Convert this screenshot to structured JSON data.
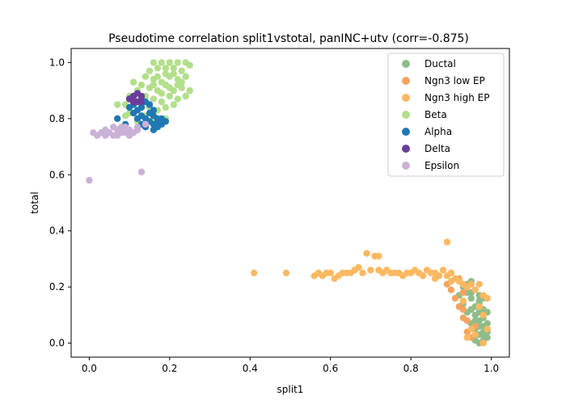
{
  "chart_data": {
    "type": "scatter",
    "title": "Pseudotime correlation split1vstotal, panINC+utv (corr=-0.875)",
    "xlabel": "split1",
    "ylabel": "total",
    "xlim": [
      -0.045,
      1.045
    ],
    "ylim": [
      -0.05,
      1.05
    ],
    "xticks": [
      "0.0",
      "0.2",
      "0.4",
      "0.6",
      "0.8",
      "1.0"
    ],
    "yticks": [
      "0.0",
      "0.2",
      "0.4",
      "0.6",
      "0.8",
      "1.0"
    ],
    "grid": false,
    "legend_position": "top-right",
    "series": [
      {
        "name": "Ductal",
        "color": "#8fbc8b",
        "points": [
          [
            0.93,
            0.2
          ],
          [
            0.94,
            0.18
          ],
          [
            0.95,
            0.16
          ],
          [
            0.96,
            0.19
          ],
          [
            0.97,
            0.14
          ],
          [
            0.95,
            0.12
          ],
          [
            0.96,
            0.1
          ],
          [
            0.97,
            0.08
          ],
          [
            0.98,
            0.06
          ],
          [
            0.98,
            0.04
          ],
          [
            0.99,
            0.02
          ],
          [
            0.97,
            0.03
          ],
          [
            0.96,
            0.05
          ],
          [
            0.99,
            0.07
          ],
          [
            0.98,
            0.12
          ],
          [
            0.94,
            0.21
          ],
          [
            0.92,
            0.17
          ],
          [
            0.95,
            0.22
          ],
          [
            0.97,
            0.17
          ],
          [
            0.98,
            0.09
          ],
          [
            0.96,
            0.01
          ],
          [
            0.99,
            0.11
          ],
          [
            0.97,
            0.15
          ],
          [
            0.93,
            0.14
          ],
          [
            0.95,
            0.07
          ],
          [
            0.98,
            0.01
          ],
          [
            0.96,
            0.13
          ],
          [
            0.94,
            0.11
          ],
          [
            0.97,
            0.11
          ],
          [
            0.98,
            0.16
          ],
          [
            0.95,
            0.18
          ],
          [
            0.99,
            0.04
          ],
          [
            0.97,
            0.06
          ],
          [
            0.96,
            0.08
          ],
          [
            0.98,
            0.03
          ],
          [
            0.97,
            0.0
          ]
        ]
      },
      {
        "name": "Ngn3 low EP",
        "color": "#f4a460",
        "points": [
          [
            0.9,
            0.19
          ],
          [
            0.92,
            0.23
          ],
          [
            0.91,
            0.16
          ],
          [
            0.93,
            0.09
          ],
          [
            0.94,
            0.04
          ],
          [
            0.95,
            0.02
          ],
          [
            0.92,
            0.13
          ],
          [
            0.93,
            0.18
          ],
          [
            0.96,
            0.06
          ],
          [
            0.89,
            0.21
          ],
          [
            0.94,
            0.08
          ],
          [
            0.93,
            0.12
          ]
        ]
      },
      {
        "name": "Ngn3 high EP",
        "color": "#fdb863",
        "points": [
          [
            0.41,
            0.25
          ],
          [
            0.49,
            0.25
          ],
          [
            0.56,
            0.24
          ],
          [
            0.57,
            0.25
          ],
          [
            0.59,
            0.25
          ],
          [
            0.6,
            0.25
          ],
          [
            0.61,
            0.23
          ],
          [
            0.62,
            0.24
          ],
          [
            0.64,
            0.25
          ],
          [
            0.65,
            0.25
          ],
          [
            0.66,
            0.26
          ],
          [
            0.67,
            0.27
          ],
          [
            0.68,
            0.25
          ],
          [
            0.69,
            0.32
          ],
          [
            0.7,
            0.26
          ],
          [
            0.71,
            0.31
          ],
          [
            0.72,
            0.31
          ],
          [
            0.72,
            0.26
          ],
          [
            0.74,
            0.26
          ],
          [
            0.75,
            0.25
          ],
          [
            0.76,
            0.25
          ],
          [
            0.77,
            0.25
          ],
          [
            0.78,
            0.24
          ],
          [
            0.79,
            0.25
          ],
          [
            0.8,
            0.25
          ],
          [
            0.81,
            0.26
          ],
          [
            0.82,
            0.25
          ],
          [
            0.83,
            0.24
          ],
          [
            0.84,
            0.26
          ],
          [
            0.85,
            0.25
          ],
          [
            0.86,
            0.25
          ],
          [
            0.87,
            0.24
          ],
          [
            0.88,
            0.26
          ],
          [
            0.89,
            0.36
          ],
          [
            0.89,
            0.24
          ],
          [
            0.9,
            0.25
          ],
          [
            0.91,
            0.23
          ],
          [
            0.92,
            0.22
          ],
          [
            0.93,
            0.21
          ],
          [
            0.94,
            0.2
          ],
          [
            0.95,
            0.21
          ],
          [
            0.96,
            0.19
          ],
          [
            0.97,
            0.21
          ],
          [
            0.98,
            0.17
          ],
          [
            0.99,
            0.16
          ],
          [
            0.97,
            0.13
          ],
          [
            0.98,
            0.1
          ],
          [
            0.99,
            0.05
          ],
          [
            0.96,
            0.03
          ],
          [
            0.95,
            0.05
          ],
          [
            0.94,
            0.02
          ],
          [
            0.98,
            0.0
          ],
          [
            0.63,
            0.25
          ],
          [
            0.58,
            0.24
          ],
          [
            0.73,
            0.25
          ],
          [
            0.86,
            0.23
          ],
          [
            0.9,
            0.22
          ],
          [
            0.93,
            0.15
          ]
        ]
      },
      {
        "name": "Beta",
        "color": "#b2df8a",
        "points": [
          [
            0.15,
            0.97
          ],
          [
            0.16,
            1.0
          ],
          [
            0.18,
            1.0
          ],
          [
            0.2,
            1.0
          ],
          [
            0.22,
            1.0
          ],
          [
            0.24,
            1.0
          ],
          [
            0.17,
            0.98
          ],
          [
            0.19,
            0.96
          ],
          [
            0.21,
            0.98
          ],
          [
            0.23,
            0.97
          ],
          [
            0.25,
            0.99
          ],
          [
            0.16,
            0.94
          ],
          [
            0.18,
            0.93
          ],
          [
            0.2,
            0.95
          ],
          [
            0.22,
            0.94
          ],
          [
            0.24,
            0.95
          ],
          [
            0.15,
            0.91
          ],
          [
            0.17,
            0.9
          ],
          [
            0.19,
            0.92
          ],
          [
            0.21,
            0.9
          ],
          [
            0.23,
            0.91
          ],
          [
            0.25,
            0.9
          ],
          [
            0.13,
            0.92
          ],
          [
            0.14,
            0.88
          ],
          [
            0.16,
            0.87
          ],
          [
            0.18,
            0.86
          ],
          [
            0.2,
            0.88
          ],
          [
            0.22,
            0.87
          ],
          [
            0.12,
            0.9
          ],
          [
            0.11,
            0.93
          ],
          [
            0.13,
            0.85
          ],
          [
            0.15,
            0.84
          ],
          [
            0.17,
            0.83
          ],
          [
            0.19,
            0.84
          ],
          [
            0.21,
            0.85
          ],
          [
            0.1,
            0.88
          ],
          [
            0.14,
            0.81
          ],
          [
            0.16,
            0.8
          ],
          [
            0.19,
            0.8
          ],
          [
            0.09,
            0.85
          ],
          [
            0.07,
            0.85
          ],
          [
            0.1,
            0.82
          ],
          [
            0.12,
            0.79
          ],
          [
            0.24,
            0.88
          ],
          [
            0.22,
            0.92
          ],
          [
            0.2,
            0.91
          ],
          [
            0.18,
            0.89
          ],
          [
            0.16,
            0.92
          ],
          [
            0.14,
            0.95
          ],
          [
            0.21,
            0.96
          ],
          [
            0.23,
            0.93
          ],
          [
            0.19,
            0.98
          ],
          [
            0.17,
            0.95
          ],
          [
            0.11,
            0.87
          ],
          [
            0.09,
            0.81
          ]
        ]
      },
      {
        "name": "Alpha",
        "color": "#1f78b4",
        "points": [
          [
            0.1,
            0.87
          ],
          [
            0.11,
            0.85
          ],
          [
            0.12,
            0.83
          ],
          [
            0.13,
            0.81
          ],
          [
            0.14,
            0.8
          ],
          [
            0.15,
            0.79
          ],
          [
            0.16,
            0.78
          ],
          [
            0.17,
            0.77
          ],
          [
            0.18,
            0.78
          ],
          [
            0.12,
            0.8
          ],
          [
            0.13,
            0.84
          ],
          [
            0.14,
            0.86
          ],
          [
            0.11,
            0.82
          ],
          [
            0.15,
            0.82
          ],
          [
            0.16,
            0.81
          ],
          [
            0.17,
            0.8
          ],
          [
            0.18,
            0.8
          ],
          [
            0.19,
            0.79
          ],
          [
            0.14,
            0.77
          ],
          [
            0.13,
            0.78
          ],
          [
            0.12,
            0.76
          ],
          [
            0.16,
            0.76
          ],
          [
            0.07,
            0.8
          ],
          [
            0.09,
            0.78
          ],
          [
            0.1,
            0.84
          ],
          [
            0.15,
            0.85
          ],
          [
            0.13,
            0.87
          ],
          [
            0.11,
            0.88
          ],
          [
            0.17,
            0.79
          ],
          [
            0.16,
            0.83
          ]
        ]
      },
      {
        "name": "Delta",
        "color": "#6a3d9a",
        "points": [
          [
            0.1,
            0.87
          ],
          [
            0.11,
            0.88
          ],
          [
            0.12,
            0.89
          ],
          [
            0.13,
            0.88
          ],
          [
            0.12,
            0.86
          ],
          [
            0.11,
            0.86
          ],
          [
            0.13,
            0.86
          ]
        ]
      },
      {
        "name": "Epsilon",
        "color": "#cab2d6",
        "points": [
          [
            0.0,
            0.58
          ],
          [
            0.01,
            0.75
          ],
          [
            0.02,
            0.74
          ],
          [
            0.03,
            0.75
          ],
          [
            0.04,
            0.76
          ],
          [
            0.05,
            0.75
          ],
          [
            0.06,
            0.74
          ],
          [
            0.07,
            0.76
          ],
          [
            0.08,
            0.75
          ],
          [
            0.09,
            0.77
          ],
          [
            0.1,
            0.76
          ],
          [
            0.11,
            0.75
          ],
          [
            0.12,
            0.77
          ],
          [
            0.13,
            0.61
          ],
          [
            0.14,
            0.78
          ],
          [
            0.06,
            0.77
          ],
          [
            0.08,
            0.77
          ],
          [
            0.1,
            0.74
          ],
          [
            0.04,
            0.74
          ],
          [
            0.12,
            0.76
          ],
          [
            0.09,
            0.75
          ],
          [
            0.07,
            0.74
          ]
        ]
      }
    ]
  }
}
